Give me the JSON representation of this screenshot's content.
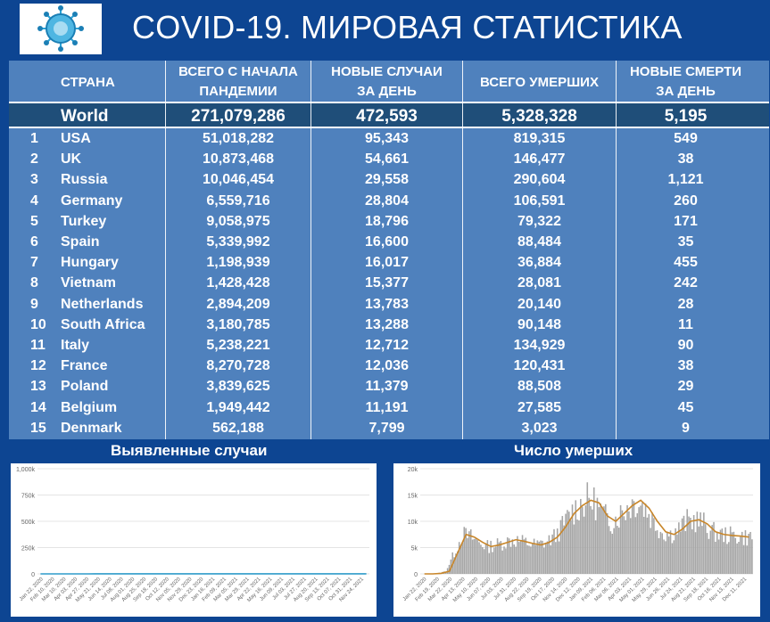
{
  "header": {
    "title": "COVID-19. МИРОВАЯ СТАТИСТИКА",
    "logo_icon": "virus-icon"
  },
  "table": {
    "columns": {
      "country": "СТРАНА",
      "total_cases_l1": "ВСЕГО С НАЧАЛА",
      "total_cases_l2": "ПАНДЕМИИ",
      "new_cases_l1": "НОВЫЕ СЛУЧАИ",
      "new_cases_l2": "ЗА ДЕНЬ",
      "total_deaths": "ВСЕГО УМЕРШИХ",
      "new_deaths_l1": "НОВЫЕ СМЕРТИ",
      "new_deaths_l2": "ЗА ДЕНЬ"
    },
    "world": {
      "country": "World",
      "total_cases": "271,079,286",
      "new_cases": "472,593",
      "total_deaths": "5,328,328",
      "new_deaths": "5,195"
    },
    "rows": [
      {
        "rank": "1",
        "country": "USA",
        "total_cases": "51,018,282",
        "new_cases": "95,343",
        "total_deaths": "819,315",
        "new_deaths": "549"
      },
      {
        "rank": "2",
        "country": "UK",
        "total_cases": "10,873,468",
        "new_cases": "54,661",
        "total_deaths": "146,477",
        "new_deaths": "38"
      },
      {
        "rank": "3",
        "country": "Russia",
        "total_cases": "10,046,454",
        "new_cases": "29,558",
        "total_deaths": "290,604",
        "new_deaths": "1,121"
      },
      {
        "rank": "4",
        "country": "Germany",
        "total_cases": "6,559,716",
        "new_cases": "28,804",
        "total_deaths": "106,591",
        "new_deaths": "260"
      },
      {
        "rank": "5",
        "country": "Turkey",
        "total_cases": "9,058,975",
        "new_cases": "18,796",
        "total_deaths": "79,322",
        "new_deaths": "171"
      },
      {
        "rank": "6",
        "country": "Spain",
        "total_cases": "5,339,992",
        "new_cases": "16,600",
        "total_deaths": "88,484",
        "new_deaths": "35"
      },
      {
        "rank": "7",
        "country": "Hungary",
        "total_cases": "1,198,939",
        "new_cases": "16,017",
        "total_deaths": "36,884",
        "new_deaths": "455"
      },
      {
        "rank": "8",
        "country": "Vietnam",
        "total_cases": "1,428,428",
        "new_cases": "15,377",
        "total_deaths": "28,081",
        "new_deaths": "242"
      },
      {
        "rank": "9",
        "country": "Netherlands",
        "total_cases": "2,894,209",
        "new_cases": "13,783",
        "total_deaths": "20,140",
        "new_deaths": "28"
      },
      {
        "rank": "10",
        "country": "South Africa",
        "total_cases": "3,180,785",
        "new_cases": "13,288",
        "total_deaths": "90,148",
        "new_deaths": "11"
      },
      {
        "rank": "11",
        "country": "Italy",
        "total_cases": "5,238,221",
        "new_cases": "12,712",
        "total_deaths": "134,929",
        "new_deaths": "90"
      },
      {
        "rank": "12",
        "country": "France",
        "total_cases": "8,270,728",
        "new_cases": "12,036",
        "total_deaths": "120,431",
        "new_deaths": "38"
      },
      {
        "rank": "13",
        "country": "Poland",
        "total_cases": "3,839,625",
        "new_cases": "11,379",
        "total_deaths": "88,508",
        "new_deaths": "29"
      },
      {
        "rank": "14",
        "country": "Belgium",
        "total_cases": "1,949,442",
        "new_cases": "11,191",
        "total_deaths": "27,585",
        "new_deaths": "45"
      },
      {
        "rank": "15",
        "country": "Denmark",
        "total_cases": "562,188",
        "new_cases": "7,799",
        "total_deaths": "3,023",
        "new_deaths": "9"
      }
    ]
  },
  "chart_data": [
    {
      "type": "bar",
      "title": "Выявленные случаи",
      "ylim": [
        0,
        1000000
      ],
      "yticks": [
        "0",
        "250k",
        "500k",
        "750k",
        "1,000k"
      ],
      "yticks_values": [
        0,
        250000,
        500000,
        750000,
        1000000
      ],
      "xticks": [
        "Jan 22, 2020",
        "Feb 10, 2020",
        "Mar 10, 2020",
        "Apr 03, 2020",
        "Apr 27, 2020",
        "May 21, 2020",
        "Jun 14, 2020",
        "Jul 08, 2020",
        "Aug 01, 2020",
        "Aug 25, 2020",
        "Sep 18, 2020",
        "Oct 12, 2020",
        "Nov 05, 2020",
        "Nov 29, 2020",
        "Dec 23, 2020",
        "Jan 16, 2021",
        "Feb 09, 2021",
        "Mar 05, 2021",
        "Mar 29, 2021",
        "Apr 22, 2021",
        "May 16, 2021",
        "Jun 09, 2021",
        "Jul 03, 2021",
        "Jul 27, 2021",
        "Aug 20, 2021",
        "Sep 13, 2021",
        "Oct 07, 2021",
        "Oct 31, 2021",
        "Nov 24, 2021"
      ],
      "series": [
        {
          "values": [
            0,
            2,
            5,
            20,
            60,
            75,
            85,
            90,
            95,
            110,
            140,
            180,
            220,
            260,
            270,
            280,
            290,
            300,
            350,
            480,
            560,
            620,
            650,
            700,
            640,
            560,
            500,
            440,
            420,
            460,
            560,
            700,
            800,
            830,
            760,
            620,
            500,
            430,
            380,
            400,
            460,
            560,
            620,
            680,
            700,
            660,
            600,
            560,
            500,
            450,
            430,
            440,
            480,
            550,
            600
          ]
        }
      ],
      "line_color": "#2e9cca",
      "bar_color": "#a6a6a6"
    },
    {
      "type": "bar",
      "title": "Число умерших",
      "ylim": [
        0,
        20000
      ],
      "yticks": [
        "0",
        "5k",
        "10k",
        "15k",
        "20k"
      ],
      "yticks_values": [
        0,
        5000,
        10000,
        15000,
        20000
      ],
      "xticks": [
        "Jan 22, 2020",
        "Feb 19, 2020",
        "Mar 22, 2020",
        "Apr 13, 2020",
        "May 10, 2020",
        "Jun 07, 2020",
        "Jul 03, 2020",
        "Jul 31, 2020",
        "Aug 22, 2020",
        "Sep 19, 2020",
        "Oct 17, 2020",
        "Nov 14, 2020",
        "Dec 12, 2020",
        "Jan 09, 2021",
        "Feb 06, 2021",
        "Mar 06, 2021",
        "Apr 03, 2021",
        "May 01, 2021",
        "May 29, 2021",
        "Jun 26, 2021",
        "Jul 24, 2021",
        "Aug 21, 2021",
        "Sep 18, 2021",
        "Oct 16, 2021",
        "Nov 13, 2021",
        "Dec 11, 2021"
      ],
      "series": [
        {
          "values": [
            0,
            0,
            100,
            500,
            4000,
            7500,
            7000,
            6000,
            5200,
            5500,
            6000,
            6500,
            6200,
            5800,
            5500,
            6000,
            7000,
            9000,
            11500,
            13000,
            14000,
            13500,
            11000,
            10000,
            11500,
            13000,
            14000,
            12500,
            10000,
            8000,
            7500,
            8500,
            10000,
            10300,
            9500,
            8000,
            7500,
            7300,
            7200,
            7000
          ]
        }
      ],
      "line_color": "#c8862a",
      "bar_color": "#a6a6a6"
    }
  ]
}
